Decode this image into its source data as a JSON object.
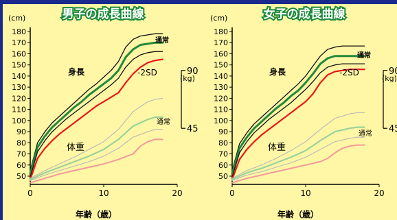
{
  "colors": {
    "frame": "#1a2a8c",
    "panel_bg": "#fff6a6",
    "title_fill": "#ffffff",
    "title_outline": "#1a8a3a",
    "height_normal_outer": "#111111",
    "height_normal_mid": "#1f8a3a",
    "height_minus2sd": "#e81818",
    "weight_normal_outer": "#b8b8b8",
    "weight_normal_mid": "#9ad29a",
    "weight_minus2sd": "#f29a9a"
  },
  "chart_data": [
    {
      "type": "line",
      "title": "男子の成長曲線",
      "xlabel": "年齢（歳）",
      "ylabel_left": "(cm)",
      "ylabel_right": "(kg)",
      "xlim": [
        0,
        20
      ],
      "ylim_height": [
        50,
        180
      ],
      "xticks": [
        "0",
        "10",
        "20"
      ],
      "yticks_height": [
        "50",
        "60",
        "70",
        "80",
        "90",
        "100",
        "110",
        "120",
        "130",
        "140",
        "150",
        "160",
        "170",
        "180"
      ],
      "yticks_weight": [
        "45",
        "90"
      ],
      "weight_scale": {
        "kg": [
          45,
          90
        ],
        "cm_equiv": [
          93,
          145
        ]
      },
      "labels": {
        "height": "身長",
        "weight": "体重",
        "normal": "通常",
        "minus2sd": "-2SD"
      },
      "series": [
        {
          "name": "通常",
          "kind": "height_normal_outer",
          "x": [
            0,
            1,
            2,
            3,
            4,
            5,
            6,
            7,
            8,
            9,
            10,
            11,
            12,
            13,
            14,
            15,
            16,
            17,
            18
          ],
          "y": [
            55,
            80,
            90,
            98,
            104,
            110,
            116,
            122,
            128,
            133,
            139,
            145,
            153,
            166,
            173,
            176,
            177,
            178,
            178
          ]
        },
        {
          "kind": "height_normal_mid",
          "x": [
            0,
            1,
            2,
            3,
            4,
            5,
            6,
            7,
            8,
            9,
            10,
            11,
            12,
            13,
            14,
            15,
            16,
            17,
            18
          ],
          "y": [
            52,
            76,
            86,
            94,
            100,
            106,
            112,
            117,
            123,
            128,
            133,
            138,
            145,
            157,
            164,
            168,
            169,
            170,
            170
          ]
        },
        {
          "kind": "height_normal_outer",
          "x": [
            0,
            1,
            2,
            3,
            4,
            5,
            6,
            7,
            8,
            9,
            10,
            11,
            12,
            13,
            14,
            15,
            16,
            17,
            18
          ],
          "y": [
            49,
            72,
            82,
            90,
            96,
            102,
            107,
            112,
            117,
            122,
            127,
            132,
            138,
            148,
            155,
            159,
            161,
            162,
            162
          ]
        },
        {
          "name": "-2SD",
          "kind": "height_minus2sd",
          "x": [
            0,
            1,
            2,
            3,
            4,
            5,
            6,
            7,
            8,
            9,
            10,
            11,
            12,
            13,
            14,
            15,
            16,
            17,
            18
          ],
          "y": [
            47,
            66,
            75,
            82,
            88,
            93,
            98,
            103,
            108,
            113,
            117,
            121,
            125,
            134,
            142,
            148,
            152,
            154,
            155
          ]
        },
        {
          "name": "通常",
          "kind": "weight_normal_outer",
          "x": [
            0,
            2,
            4,
            6,
            8,
            10,
            12,
            14,
            16,
            17,
            18
          ],
          "y": [
            48,
            55,
            61,
            67,
            74,
            81,
            92,
            108,
            117,
            119,
            120
          ]
        },
        {
          "kind": "weight_normal_mid",
          "x": [
            0,
            2,
            4,
            6,
            8,
            10,
            12,
            14,
            16,
            17,
            18
          ],
          "y": [
            47,
            53,
            58,
            63,
            68,
            74,
            83,
            95,
            101,
            103,
            103
          ]
        },
        {
          "kind": "weight_normal_outer",
          "x": [
            0,
            2,
            4,
            6,
            8,
            10,
            12,
            14,
            16,
            17,
            18
          ],
          "y": [
            46,
            51,
            55,
            59,
            63,
            68,
            75,
            85,
            90,
            92,
            92
          ]
        },
        {
          "kind": "weight_minus2sd",
          "x": [
            0,
            2,
            4,
            6,
            8,
            10,
            12,
            14,
            15,
            16,
            17,
            18
          ],
          "y": [
            44,
            48,
            52,
            55,
            58,
            61,
            65,
            70,
            77,
            81,
            83,
            83
          ]
        }
      ]
    },
    {
      "type": "line",
      "title": "女子の成長曲線",
      "xlabel": "年齢（歳）",
      "ylabel_left": "(cm)",
      "ylabel_right": "(kg)",
      "xlim": [
        0,
        20
      ],
      "ylim_height": [
        50,
        180
      ],
      "xticks": [
        "0",
        "10",
        "20"
      ],
      "yticks_height": [
        "50",
        "60",
        "70",
        "80",
        "90",
        "100",
        "110",
        "120",
        "130",
        "140",
        "150",
        "160",
        "170",
        "180"
      ],
      "yticks_weight": [
        "45",
        "90"
      ],
      "weight_scale": {
        "kg": [
          45,
          90
        ],
        "cm_equiv": [
          93,
          145
        ]
      },
      "labels": {
        "height": "身長",
        "weight": "体重",
        "normal": "通常",
        "minus2sd": "-2SD"
      },
      "series": [
        {
          "name": "通常",
          "kind": "height_normal_outer",
          "x": [
            0,
            1,
            2,
            3,
            4,
            5,
            6,
            7,
            8,
            9,
            10,
            11,
            12,
            13,
            14,
            15,
            16,
            17,
            18
          ],
          "y": [
            55,
            79,
            89,
            97,
            103,
            109,
            115,
            121,
            127,
            133,
            140,
            149,
            158,
            164,
            166,
            167,
            167,
            167,
            167
          ]
        },
        {
          "kind": "height_normal_mid",
          "x": [
            0,
            1,
            2,
            3,
            4,
            5,
            6,
            7,
            8,
            9,
            10,
            11,
            12,
            13,
            14,
            15,
            16,
            17,
            18
          ],
          "y": [
            52,
            75,
            85,
            93,
            99,
            105,
            111,
            116,
            122,
            127,
            134,
            142,
            151,
            156,
            158,
            158,
            158,
            158,
            158
          ]
        },
        {
          "kind": "height_normal_outer",
          "x": [
            0,
            1,
            2,
            3,
            4,
            5,
            6,
            7,
            8,
            9,
            10,
            11,
            12,
            13,
            14,
            15,
            16,
            17,
            18
          ],
          "y": [
            49,
            71,
            81,
            89,
            95,
            101,
            106,
            111,
            116,
            122,
            128,
            135,
            143,
            148,
            150,
            151,
            151,
            151,
            151
          ]
        },
        {
          "name": "-2SD",
          "kind": "height_minus2sd",
          "x": [
            0,
            1,
            2,
            3,
            4,
            5,
            6,
            7,
            8,
            9,
            10,
            11,
            12,
            13,
            14,
            15,
            16,
            17,
            18
          ],
          "y": [
            47,
            65,
            74,
            81,
            87,
            92,
            97,
            102,
            107,
            112,
            117,
            124,
            134,
            141,
            144,
            145,
            146,
            146,
            146
          ]
        },
        {
          "name": "通常",
          "kind": "weight_normal_outer",
          "x": [
            0,
            2,
            4,
            6,
            8,
            10,
            12,
            14,
            16,
            17,
            18
          ],
          "y": [
            48,
            55,
            60,
            66,
            73,
            81,
            92,
            102,
            106,
            107,
            107
          ]
        },
        {
          "kind": "weight_normal_mid",
          "x": [
            0,
            2,
            4,
            6,
            8,
            10,
            12,
            14,
            16,
            17,
            18
          ],
          "y": [
            47,
            53,
            57,
            62,
            67,
            73,
            82,
            90,
            93,
            94,
            94
          ]
        },
        {
          "kind": "weight_normal_outer",
          "x": [
            0,
            2,
            4,
            6,
            8,
            10,
            12,
            14,
            16,
            17,
            18
          ],
          "y": [
            46,
            51,
            54,
            58,
            62,
            67,
            74,
            81,
            84,
            85,
            85
          ]
        },
        {
          "kind": "weight_minus2sd",
          "x": [
            0,
            2,
            4,
            6,
            8,
            10,
            12,
            13,
            14,
            15,
            16,
            17,
            18
          ],
          "y": [
            44,
            48,
            51,
            54,
            57,
            60,
            63,
            66,
            71,
            75,
            77,
            78,
            78
          ]
        }
      ]
    }
  ]
}
